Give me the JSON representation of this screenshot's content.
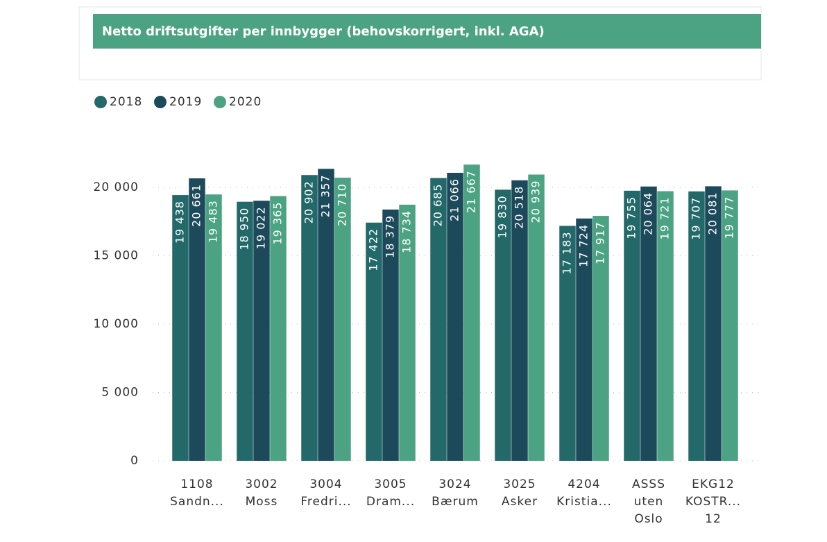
{
  "chart_data": {
    "type": "bar",
    "title": "Netto driftsutgifter per innbygger (behovskorrigert, inkl. AGA)",
    "categories": [
      [
        "1108",
        "Sandn..."
      ],
      [
        "3002",
        "Moss"
      ],
      [
        "3004",
        "Fredri..."
      ],
      [
        "3005",
        "Dram..."
      ],
      [
        "3024",
        "Bærum"
      ],
      [
        "3025",
        "Asker"
      ],
      [
        "4204",
        "Kristia..."
      ],
      [
        "ASSS",
        "uten",
        "Oslo"
      ],
      [
        "EKG12",
        "KOSTR...",
        "12"
      ]
    ],
    "series": [
      {
        "name": "2018",
        "color": "#23696a",
        "values": [
          19438,
          18950,
          20902,
          17422,
          20685,
          19830,
          17183,
          19755,
          19707
        ],
        "value_labels": [
          "19 438",
          "18 950",
          "20 902",
          "17 422",
          "20 685",
          "19 830",
          "17 183",
          "19 755",
          "19 707"
        ]
      },
      {
        "name": "2019",
        "color": "#1d4a5b",
        "values": [
          20661,
          19022,
          21357,
          18379,
          21066,
          20518,
          17724,
          20064,
          20081
        ],
        "value_labels": [
          "20 661",
          "19 022",
          "21 357",
          "18 379",
          "21 066",
          "20 518",
          "17 724",
          "20 064",
          "20 081"
        ]
      },
      {
        "name": "2020",
        "color": "#4ca383",
        "values": [
          19483,
          19365,
          20710,
          18734,
          21667,
          20939,
          17917,
          19721,
          19777
        ],
        "value_labels": [
          "19 483",
          "19 365",
          "20 710",
          "18 734",
          "21 667",
          "20 939",
          "17 917",
          "19 721",
          "19 777"
        ]
      }
    ],
    "ylim": [
      0,
      22000
    ],
    "yticks": [
      0,
      {
        "value": 5000,
        "label": "5 000"
      },
      {
        "value": 10000,
        "label": "10 000"
      },
      {
        "value": 15000,
        "label": "15 000"
      },
      {
        "value": 20000,
        "label": "20 000"
      }
    ],
    "grid": true,
    "legend": "top-left"
  }
}
